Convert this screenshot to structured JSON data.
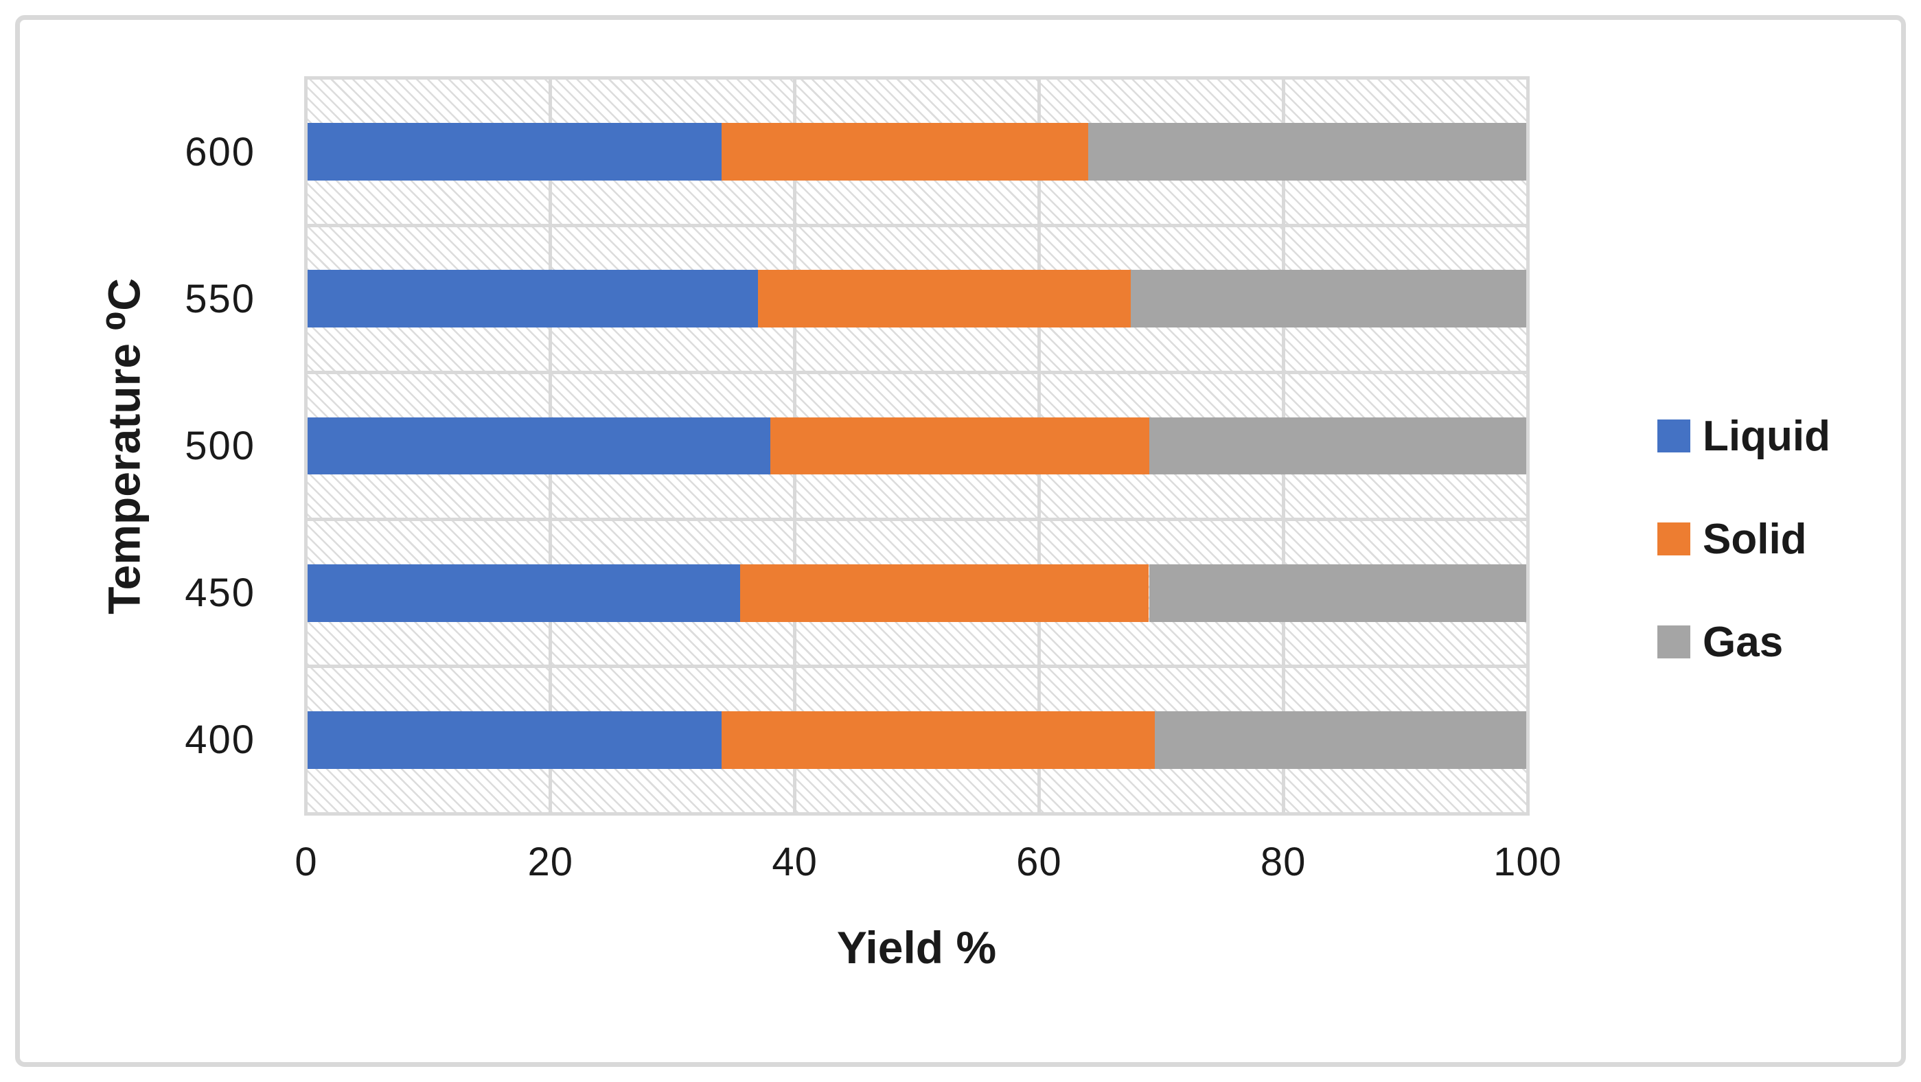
{
  "figure": {
    "background_color": "#ffffff",
    "border_color": "#d9d9d9",
    "gridline_color": "#d9d9d9",
    "plot_fill_pattern": "light-diagonal-hatch"
  },
  "chart_data": {
    "type": "bar",
    "orientation": "horizontal",
    "stacked": true,
    "title": "",
    "xlabel": "Yield %",
    "ylabel": "Temperature ⁰C",
    "categories": [
      "600",
      "550",
      "500",
      "450",
      "400"
    ],
    "series": [
      {
        "name": "Liquid",
        "color": "#4472C4",
        "values": [
          34,
          37,
          38,
          35.5,
          34
        ]
      },
      {
        "name": "Solid",
        "color": "#ED7D31",
        "values": [
          30,
          30.5,
          31,
          33.5,
          35.5
        ]
      },
      {
        "name": "Gas",
        "color": "#A5A5A5",
        "values": [
          36,
          32.5,
          31,
          31,
          30.5
        ]
      }
    ],
    "xlim": [
      0,
      100
    ],
    "xticks": [
      0,
      20,
      40,
      60,
      80,
      100
    ],
    "grid": true,
    "legend_position": "right"
  }
}
